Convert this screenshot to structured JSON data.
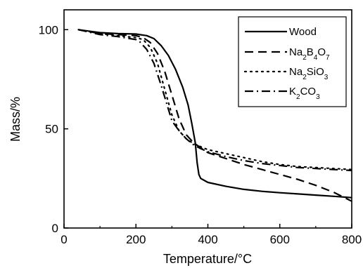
{
  "chart_data": {
    "type": "line",
    "xlabel": "Temperature/°C",
    "ylabel": "Mass/%",
    "xlim": [
      0,
      800
    ],
    "ylim": [
      0,
      110
    ],
    "x_ticks": [
      0,
      200,
      400,
      600,
      800
    ],
    "y_ticks": [
      0,
      50,
      100
    ],
    "x_tick_labels": [
      "0",
      "200",
      "400",
      "600",
      "800"
    ],
    "y_tick_labels": [
      "0",
      "50",
      "100"
    ],
    "grid": false,
    "legend_position": "top-right",
    "series": [
      {
        "name": "Wood",
        "dash": "solid",
        "color": "#000000",
        "x": [
          40,
          100,
          150,
          200,
          230,
          250,
          270,
          290,
          310,
          330,
          345,
          355,
          365,
          370,
          375,
          380,
          400,
          450,
          500,
          550,
          600,
          650,
          700,
          750,
          800
        ],
        "y": [
          100,
          98.5,
          98,
          97.8,
          97,
          95.5,
          92,
          87,
          80,
          71,
          62,
          53,
          43,
          33,
          27,
          25,
          23,
          21,
          19.5,
          18.5,
          17.8,
          17.2,
          16.6,
          16.0,
          15.3
        ]
      },
      {
        "name": "Na2B4O7",
        "name_parts": [
          "Na",
          "2",
          "B",
          "4",
          "O",
          "7"
        ],
        "dash": "dashed",
        "color": "#000000",
        "x": [
          40,
          100,
          150,
          200,
          220,
          240,
          260,
          280,
          300,
          320,
          340,
          360,
          380,
          400,
          450,
          500,
          550,
          600,
          650,
          700,
          750,
          800
        ],
        "y": [
          100,
          98,
          97.5,
          97,
          96,
          93.5,
          88,
          79,
          67,
          55,
          47,
          43,
          40.5,
          38,
          35,
          32,
          29.5,
          27,
          24.5,
          21.5,
          18,
          13.5
        ]
      },
      {
        "name": "Na2SiO3",
        "name_parts": [
          "Na",
          "2",
          "Si",
          "O",
          "3"
        ],
        "dash": "dotted",
        "color": "#000000",
        "x": [
          40,
          100,
          150,
          200,
          220,
          240,
          260,
          280,
          300,
          320,
          340,
          360,
          380,
          400,
          450,
          500,
          550,
          600,
          650,
          700,
          750,
          800
        ],
        "y": [
          100,
          98,
          97,
          96,
          95,
          91,
          83,
          70,
          57,
          49,
          45,
          42.5,
          41,
          39.5,
          37.5,
          35.5,
          33.5,
          32,
          31,
          30.5,
          30,
          29.5
        ]
      },
      {
        "name": "K2CO3",
        "name_parts": [
          "K",
          "2",
          "CO",
          "3"
        ],
        "dash": "dashdot",
        "color": "#000000",
        "x": [
          40,
          100,
          150,
          200,
          210,
          230,
          250,
          270,
          290,
          300,
          320,
          340,
          360,
          380,
          400,
          450,
          500,
          550,
          600,
          650,
          700,
          750,
          800
        ],
        "y": [
          100,
          97.5,
          96.5,
          95,
          94,
          90,
          83,
          72,
          60,
          54,
          49,
          45,
          42,
          40,
          38.5,
          36,
          34,
          32.5,
          31.5,
          30.5,
          30,
          29.5,
          29
        ]
      }
    ]
  }
}
